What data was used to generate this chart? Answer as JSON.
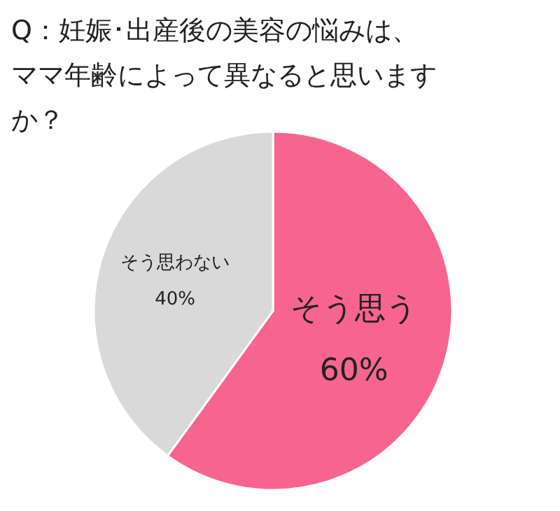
{
  "chart_data": {
    "type": "pie",
    "title": "Q：妊娠･出産後の美容の悩みは、ママ年齢によって異なると思いますか？",
    "categories": [
      "そう思う",
      "そう思わない"
    ],
    "values": [
      60,
      40
    ],
    "colors": [
      "#f7658f",
      "#d9d9d9"
    ],
    "value_labels": [
      "60%",
      "40%"
    ],
    "legend": false
  }
}
